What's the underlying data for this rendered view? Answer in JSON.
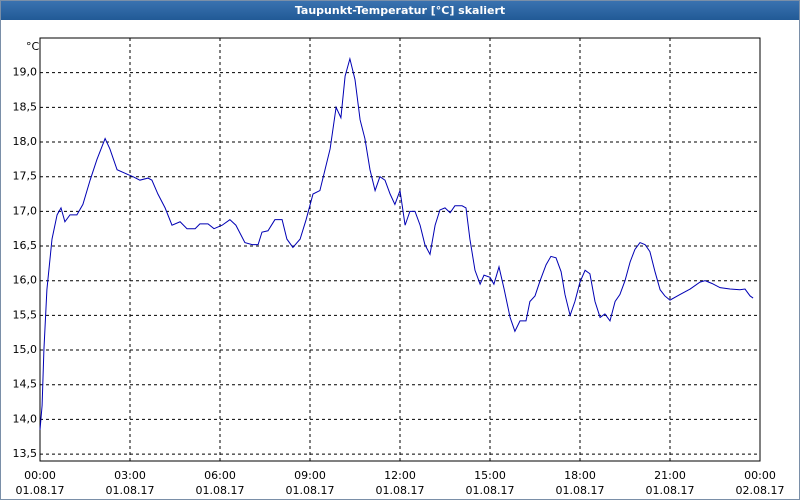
{
  "chart_data": {
    "type": "line",
    "title": "Taupunkt-Temperatur [°C] skaliert",
    "y_unit": "°C",
    "x": [
      0,
      0.07,
      0.13,
      0.23,
      0.4,
      0.57,
      0.7,
      0.83,
      1.0,
      1.23,
      1.43,
      1.67,
      1.9,
      2.17,
      2.33,
      2.57,
      2.83,
      3.1,
      3.33,
      3.6,
      3.73,
      3.93,
      4.17,
      4.4,
      4.67,
      4.9,
      5.17,
      5.33,
      5.6,
      5.8,
      6.07,
      6.33,
      6.53,
      6.83,
      7.07,
      7.27,
      7.4,
      7.6,
      7.83,
      8.07,
      8.23,
      8.43,
      8.67,
      8.87,
      9.1,
      9.33,
      9.5,
      9.67,
      9.87,
      10.03,
      10.17,
      10.33,
      10.5,
      10.67,
      10.83,
      11.0,
      11.17,
      11.33,
      11.5,
      11.67,
      11.83,
      12.0,
      12.17,
      12.33,
      12.5,
      12.67,
      12.83,
      13.0,
      13.17,
      13.33,
      13.5,
      13.67,
      13.83,
      14.07,
      14.2,
      14.33,
      14.5,
      14.67,
      14.8,
      15.0,
      15.13,
      15.3,
      15.47,
      15.67,
      15.83,
      16.0,
      16.2,
      16.33,
      16.5,
      16.67,
      16.87,
      17.03,
      17.2,
      17.37,
      17.5,
      17.67,
      17.83,
      18.0,
      18.17,
      18.33,
      18.5,
      18.67,
      18.83,
      19.0,
      19.17,
      19.33,
      19.5,
      19.67,
      19.83,
      20.0,
      20.17,
      20.33,
      20.5,
      20.67,
      20.83,
      21.0,
      21.33,
      21.67,
      22.0,
      22.17,
      22.4,
      22.67,
      23.0,
      23.33,
      23.5,
      23.67,
      23.77
    ],
    "series": [
      {
        "color": "#0000b4",
        "values": [
          13.85,
          14.2,
          15.0,
          15.87,
          16.6,
          16.95,
          17.05,
          16.85,
          16.95,
          16.95,
          17.1,
          17.45,
          17.75,
          18.05,
          17.9,
          17.6,
          17.55,
          17.5,
          17.45,
          17.48,
          17.45,
          17.25,
          17.05,
          16.8,
          16.85,
          16.75,
          16.75,
          16.82,
          16.82,
          16.75,
          16.8,
          16.88,
          16.8,
          16.55,
          16.52,
          16.52,
          16.7,
          16.72,
          16.88,
          16.88,
          16.6,
          16.48,
          16.6,
          16.88,
          17.25,
          17.3,
          17.6,
          17.9,
          18.5,
          18.35,
          18.95,
          19.2,
          18.9,
          18.32,
          18.05,
          17.6,
          17.3,
          17.5,
          17.45,
          17.25,
          17.1,
          17.3,
          16.8,
          17.0,
          17.0,
          16.8,
          16.52,
          16.38,
          16.8,
          17.02,
          17.05,
          16.98,
          17.08,
          17.08,
          17.05,
          16.6,
          16.15,
          15.95,
          16.08,
          16.05,
          15.95,
          16.2,
          15.88,
          15.47,
          15.27,
          15.42,
          15.42,
          15.7,
          15.78,
          16.0,
          16.23,
          16.35,
          16.33,
          16.13,
          15.8,
          15.5,
          15.7,
          15.98,
          16.15,
          16.1,
          15.7,
          15.47,
          15.52,
          15.42,
          15.7,
          15.8,
          16.0,
          16.27,
          16.45,
          16.55,
          16.52,
          16.42,
          16.13,
          15.87,
          15.78,
          15.72,
          15.8,
          15.88,
          15.98,
          16.0,
          15.96,
          15.9,
          15.88,
          15.87,
          15.88,
          15.78,
          15.75
        ]
      }
    ],
    "xlim": [
      0,
      24
    ],
    "xticks": [
      {
        "value": 0,
        "label": "00:00"
      },
      {
        "value": 3,
        "label": "03:00"
      },
      {
        "value": 6,
        "label": "06:00"
      },
      {
        "value": 9,
        "label": "09:00"
      },
      {
        "value": 12,
        "label": "12:00"
      },
      {
        "value": 15,
        "label": "15:00"
      },
      {
        "value": 18,
        "label": "18:00"
      },
      {
        "value": 21,
        "label": "21:00"
      },
      {
        "value": 24,
        "label": "00:00"
      }
    ],
    "xtick_dates": [
      "01.08.17",
      "01.08.17",
      "01.08.17",
      "01.08.17",
      "01.08.17",
      "01.08.17",
      "01.08.17",
      "01.08.17",
      "02.08.17"
    ],
    "ylim": [
      13.4,
      19.5
    ],
    "yticks": [
      {
        "value": 13.5,
        "label": "13,5"
      },
      {
        "value": 14.0,
        "label": "14,0"
      },
      {
        "value": 14.5,
        "label": "14,5"
      },
      {
        "value": 15.0,
        "label": "15,0"
      },
      {
        "value": 15.5,
        "label": "15,5"
      },
      {
        "value": 16.0,
        "label": "16,0"
      },
      {
        "value": 16.5,
        "label": "16,5"
      },
      {
        "value": 17.0,
        "label": "17,0"
      },
      {
        "value": 17.5,
        "label": "17,5"
      },
      {
        "value": 18.0,
        "label": "18,0"
      },
      {
        "value": 18.5,
        "label": "18,5"
      },
      {
        "value": 19.0,
        "label": "19,0"
      }
    ],
    "grid": true
  }
}
